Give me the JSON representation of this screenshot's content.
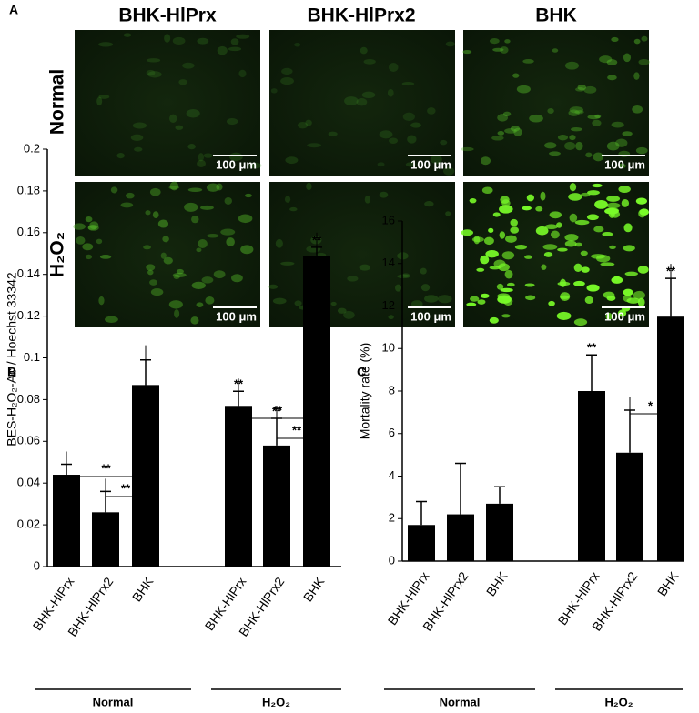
{
  "panel_a": {
    "label": "A",
    "columns": [
      "BHK-HlPrx",
      "BHK-HlPrx2",
      "BHK"
    ],
    "rows": [
      "Normal",
      "H₂O₂"
    ],
    "scale_bar": "100 μm"
  },
  "chart_data": [
    {
      "type": "bar",
      "panel_label": "B",
      "ylabel": "BES-H₂O₂-Ac / Hoechst 33342",
      "categories": [
        "BHK-HlPrx",
        "BHK-HlPrx2",
        "BHK",
        "BHK-HlPrx",
        "BHK-HlPrx2",
        "BHK"
      ],
      "groups": [
        "Normal",
        "H₂O₂"
      ],
      "values": [
        0.044,
        0.026,
        0.087,
        0.077,
        0.058,
        0.149
      ],
      "errors": [
        0.005,
        0.01,
        0.012,
        0.007,
        0.013,
        0.004
      ],
      "color": "#000000",
      "ylim": [
        0,
        0.2
      ],
      "yticks": [
        0,
        0.02,
        0.04,
        0.06,
        0.08,
        0.1,
        0.12,
        0.14,
        0.16,
        0.18,
        0.2
      ],
      "significance": [
        null,
        null,
        null,
        "**",
        "**",
        "**"
      ],
      "brackets": [
        "**",
        "**",
        "**",
        "**"
      ]
    },
    {
      "type": "bar",
      "panel_label": "C",
      "ylabel": "Mortality rate (%)",
      "categories": [
        "BHK-HlPrx",
        "BHK-HlPrx2",
        "BHK",
        "BHK-HlPrx",
        "BHK-HlPrx2",
        "BHK"
      ],
      "groups": [
        "Normal",
        "H₂O₂"
      ],
      "values": [
        1.7,
        2.2,
        2.7,
        8.0,
        5.1,
        11.5
      ],
      "errors": [
        1.1,
        2.4,
        0.8,
        1.7,
        2.0,
        1.8
      ],
      "color": "#000000",
      "ylim": [
        0,
        16
      ],
      "yticks": [
        0,
        2,
        4,
        6,
        8,
        10,
        12,
        14,
        16
      ],
      "significance": [
        null,
        null,
        null,
        "**",
        null,
        "**"
      ],
      "brackets": [
        "*"
      ]
    }
  ]
}
